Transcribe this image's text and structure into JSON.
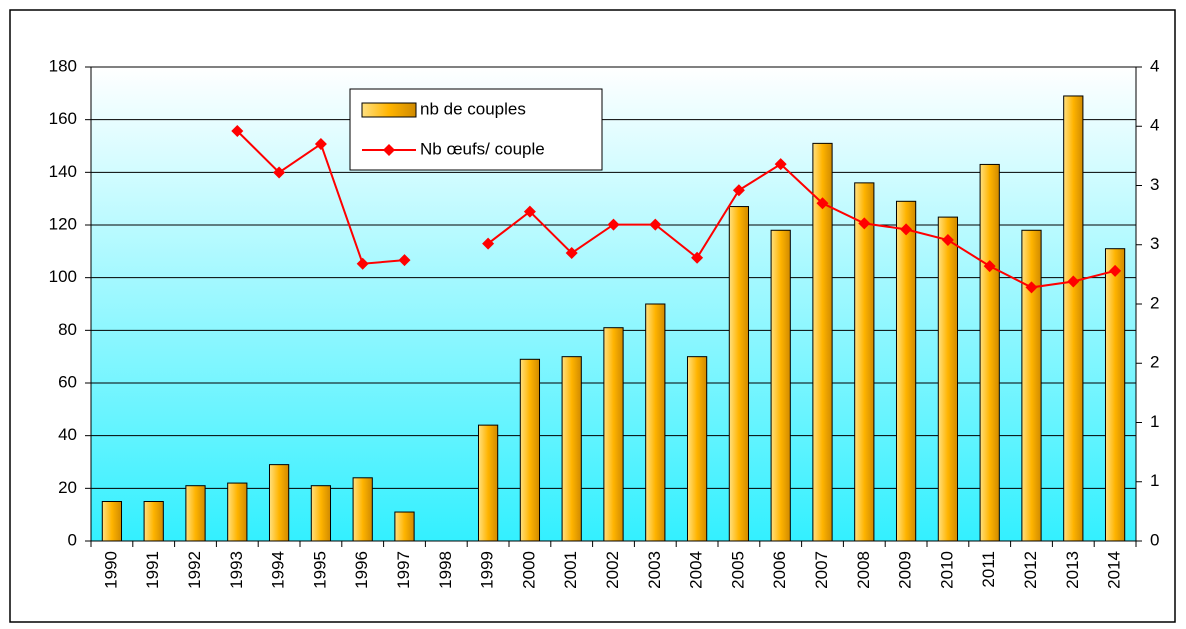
{
  "chart_data": {
    "type": "bar_line",
    "categories": [
      "1990",
      "1991",
      "1992",
      "1993",
      "1994",
      "1995",
      "1996",
      "1997",
      "1998",
      "1999",
      "2000",
      "2001",
      "2002",
      "2003",
      "2004",
      "2005",
      "2006",
      "2007",
      "2008",
      "2009",
      "2010",
      "2011",
      "2012",
      "2013",
      "2014"
    ],
    "series": [
      {
        "name": "nb de couples",
        "type": "bar",
        "color": "#ffb400",
        "values": [
          15,
          15,
          21,
          22,
          29,
          21,
          24,
          11,
          null,
          44,
          69,
          70,
          81,
          90,
          70,
          127,
          118,
          151,
          136,
          129,
          123,
          143,
          118,
          169,
          111
        ]
      },
      {
        "name": "Nb œufs/ couple",
        "type": "line",
        "axis": "y2",
        "color": "#ff0000",
        "values": [
          null,
          null,
          null,
          3.46,
          3.11,
          3.35,
          2.34,
          2.37,
          null,
          2.51,
          2.78,
          2.43,
          2.67,
          2.67,
          2.39,
          2.96,
          3.18,
          2.85,
          2.68,
          2.63,
          2.54,
          2.32,
          2.14,
          2.19,
          2.28
        ]
      }
    ],
    "ylim": [
      0,
      180
    ],
    "yticks": [
      0,
      20,
      40,
      60,
      80,
      100,
      120,
      140,
      160,
      180
    ],
    "y2lim": [
      0,
      4
    ],
    "y2ticks": [
      0,
      {
        "value": 0.5,
        "label": "1"
      },
      1,
      {
        "value": 1.5,
        "label": "2"
      },
      2,
      {
        "value": 2.5,
        "label": "3"
      },
      3,
      {
        "value": 3.5,
        "label": "4"
      },
      4
    ],
    "grid": true,
    "legend": "top-center"
  }
}
